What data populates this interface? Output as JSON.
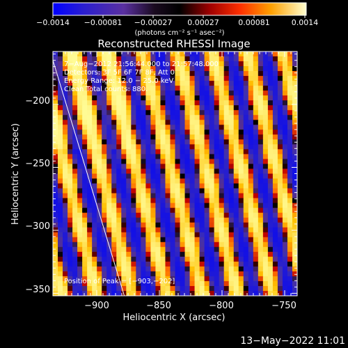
{
  "chart_data": {
    "type": "heatmap",
    "title": "Reconstructed RHESSI Image",
    "xlabel": "Heliocentric X (arcsec)",
    "ylabel": "Heliocentric Y (arcsec)",
    "xlim": [
      -935,
      -740
    ],
    "ylim": [
      -352,
      -158
    ],
    "xticks": [
      -900,
      -850,
      -800,
      -750
    ],
    "yticks": [
      -200,
      -250,
      -300,
      -350
    ],
    "xtick_labels": [
      "−900",
      "−850",
      "−800",
      "−750"
    ],
    "ytick_labels": [
      "−200",
      "−250",
      "−300",
      "−350"
    ],
    "colorbar": {
      "range": [
        -0.0014,
        0.0014
      ],
      "tick_labels": [
        "−0.0014",
        "−0.00081",
        "−0.00027",
        "0.00027",
        "0.00081",
        "0.0014"
      ],
      "units": "(photons cm⁻² s⁻¹ asec⁻²)"
    },
    "annotations": [
      "7−Aug−2012 21:56:44.000 to 21:57:48.000",
      "Detectors: 3F 5F 6F 7F 8F, Att 0",
      "Energy Range: 12.0 − 25.0 keV",
      "Clean     Total counts: 880.",
      "Position of Peak = [−903,−202]"
    ],
    "peak_position": [
      -903,
      -202
    ],
    "limb_line": [
      [
        -935,
        -165
      ],
      [
        -878,
        -352
      ]
    ],
    "pattern": "diagonal stripes alternating positive (yellow/orange) and negative (purple/blue) flux",
    "colormap": [
      "#0a0af0",
      "#4030b0",
      "#5a2f8a",
      "#000000",
      "#c00000",
      "#ff7000",
      "#ffc000",
      "#ffffa0"
    ]
  },
  "timestamp": "13−May−2022 11:01"
}
